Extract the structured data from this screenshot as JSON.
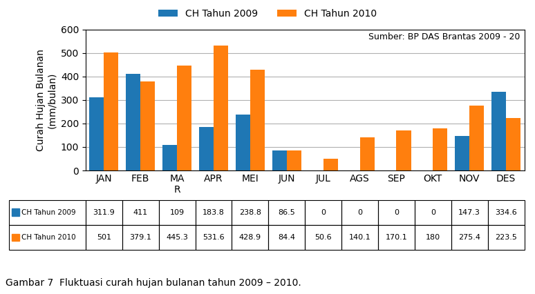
{
  "chart_data": {
    "type": "bar",
    "categories": [
      "JAN",
      "FEB",
      "MA\nR",
      "APR",
      "MEI",
      "JUN",
      "JUL",
      "AGS",
      "SEP",
      "OKT",
      "NOV",
      "DES"
    ],
    "series": [
      {
        "name": "CH Tahun 2009",
        "values": [
          311.9,
          411,
          109,
          183.8,
          238.8,
          86.5,
          0,
          0,
          0,
          0,
          147.3,
          334.6
        ]
      },
      {
        "name": "CH Tahun 2010",
        "values": [
          501,
          379.1,
          445.3,
          531.6,
          428.9,
          84.4,
          50.6,
          140.1,
          170.1,
          180,
          275.4,
          223.5
        ]
      }
    ],
    "ylabel": "Curah Hujan Bulanan\n(mm/bulan)",
    "ylim": [
      0,
      600
    ],
    "yticks": [
      0,
      100,
      200,
      300,
      400,
      500,
      600
    ],
    "grid": true,
    "legend": "upper center",
    "annotations": [
      "Sumber: BP DAS Brantas 2009 - 20"
    ],
    "caption": "Gambar 7  Fluktuasi curah hujan bulanan tahun 2009 – 2010."
  }
}
